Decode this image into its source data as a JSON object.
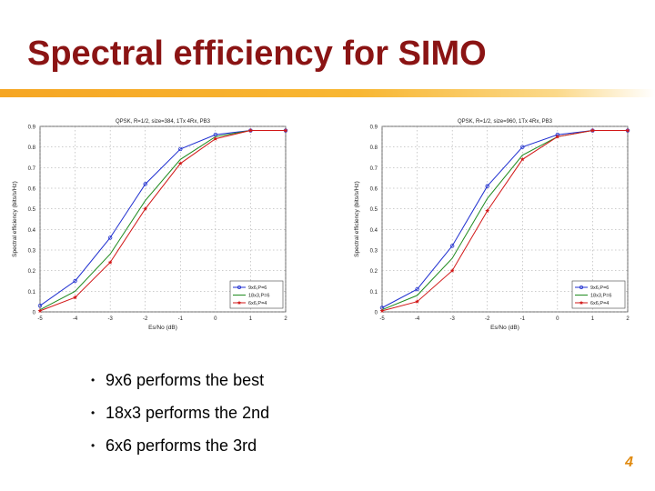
{
  "slide": {
    "title": "Spectral efficiency for SIMO",
    "bullets": [
      "9x6 performs the best",
      "18x3 performs the 2nd",
      "6x6 performs the 3rd"
    ],
    "bullet_glyph": "•",
    "page_number": "4",
    "colors": {
      "title": "#8b1414",
      "rule": "#f6a623",
      "page_number": "#e08a10"
    }
  },
  "chart_data": [
    {
      "type": "line",
      "title": "QPSK, R=1/2, size=384, 1Tx 4Rx, PB3",
      "xlabel": "Es/No (dB)",
      "ylabel": "Spectral efficiency (bits/s/Hz)",
      "xlim": [
        -5,
        2
      ],
      "ylim": [
        0,
        0.9
      ],
      "x_ticks": [
        "-5",
        "-4",
        "-3",
        "-2",
        "-1",
        "0",
        "1",
        "2"
      ],
      "y_ticks": [
        "0",
        "0.1",
        "0.2",
        "0.3",
        "0.4",
        "0.5",
        "0.6",
        "0.7",
        "0.8",
        "0.9"
      ],
      "grid": true,
      "legend_position": "bottom-right",
      "x": [
        -5,
        -4,
        -3,
        -2,
        -1,
        0,
        1,
        2
      ],
      "series": [
        {
          "name": "9x6,P=6",
          "color": "#1f2fd0",
          "marker": "circle",
          "values": [
            0.03,
            0.15,
            0.36,
            0.62,
            0.79,
            0.86,
            0.88,
            0.88
          ]
        },
        {
          "name": "18x3,P=6",
          "color": "#1e8a1e",
          "marker": "none",
          "values": [
            0.01,
            0.1,
            0.28,
            0.54,
            0.74,
            0.85,
            0.88,
            0.88
          ]
        },
        {
          "name": "6x6,P=4",
          "color": "#d21818",
          "marker": "star",
          "values": [
            0.005,
            0.07,
            0.24,
            0.5,
            0.72,
            0.84,
            0.88,
            0.88
          ]
        }
      ]
    },
    {
      "type": "line",
      "title": "QPSK, R=1/2, size=960, 1Tx 4Rx, PB3",
      "xlabel": "Es/No (dB)",
      "ylabel": "Spectral efficiency (bits/s/Hz)",
      "xlim": [
        -5,
        2
      ],
      "ylim": [
        0,
        0.9
      ],
      "x_ticks": [
        "-5",
        "-4",
        "-3",
        "-2",
        "-1",
        "0",
        "1",
        "2"
      ],
      "y_ticks": [
        "0",
        "0.1",
        "0.2",
        "0.3",
        "0.4",
        "0.5",
        "0.6",
        "0.7",
        "0.8",
        "0.9"
      ],
      "grid": true,
      "legend_position": "bottom-right",
      "x": [
        -5,
        -4,
        -3,
        -2,
        -1,
        0,
        1,
        2
      ],
      "series": [
        {
          "name": "9x6,P=6",
          "color": "#1f2fd0",
          "marker": "circle",
          "values": [
            0.02,
            0.11,
            0.32,
            0.61,
            0.8,
            0.86,
            0.88,
            0.88
          ]
        },
        {
          "name": "18x3,P=6",
          "color": "#1e8a1e",
          "marker": "none",
          "values": [
            0.01,
            0.08,
            0.26,
            0.55,
            0.76,
            0.85,
            0.88,
            0.88
          ]
        },
        {
          "name": "6x6,P=4",
          "color": "#d21818",
          "marker": "star",
          "values": [
            0.005,
            0.05,
            0.2,
            0.49,
            0.74,
            0.85,
            0.88,
            0.88
          ]
        }
      ]
    }
  ]
}
